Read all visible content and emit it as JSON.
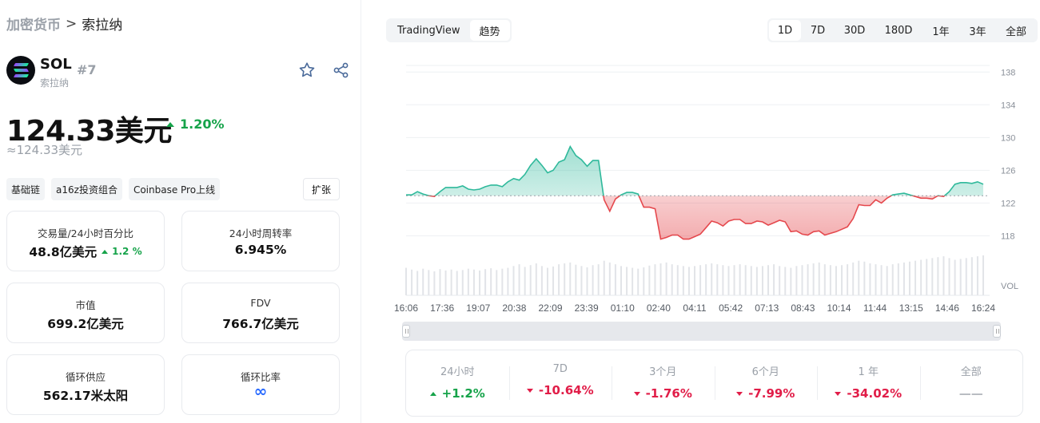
{
  "breadcrumb": {
    "root": "加密货币",
    "separator": ">",
    "current": "索拉纳"
  },
  "coin": {
    "symbol": "SOL",
    "rank": "#7",
    "name": "索拉纳"
  },
  "icons": {
    "star": "star-icon",
    "share": "share-icon",
    "logo": "solana-logo"
  },
  "price": {
    "value": "124.33美元",
    "change": "1.20%",
    "approx": "≈124.33美元"
  },
  "tags": [
    "基础链",
    "a16z投资组合",
    "Coinbase Pro上线"
  ],
  "expand_label": "扩张",
  "stats": {
    "volume": {
      "label": "交易量/24小时百分比",
      "value": "48.8亿美元",
      "change": "1.2 %"
    },
    "turnover": {
      "label": "24小时周转率",
      "value": "6.945%"
    },
    "market_cap": {
      "label": "市值",
      "value": "699.2亿美元"
    },
    "fdv": {
      "label": "FDV",
      "value": "766.7亿美元"
    },
    "supply": {
      "label": "循环供应",
      "value": "562.17米太阳"
    },
    "ratio": {
      "label": "循环比率",
      "value": "∞"
    }
  },
  "view_toggle": {
    "tradingview": "TradingView",
    "trend": "趋势"
  },
  "ranges": [
    "1D",
    "7D",
    "30D",
    "180D",
    "1年",
    "3年",
    "全部"
  ],
  "selected_range": "1D",
  "colors": {
    "up": "#16a34a",
    "down": "#e11d48",
    "line_up": "#2fb99b",
    "line_down": "#e5484d"
  },
  "chart_data": {
    "type": "area",
    "baseline": 122.9,
    "ylim": [
      116,
      139
    ],
    "y_ticks": [
      138,
      134,
      130,
      126,
      122,
      118
    ],
    "y_extra_label": "VOL",
    "x_ticks": [
      "16:06",
      "17:36",
      "19:07",
      "20:38",
      "22:09",
      "23:39",
      "01:10",
      "02:40",
      "04:11",
      "05:42",
      "07:13",
      "08:43",
      "10:14",
      "11:44",
      "13:15",
      "14:46",
      "16:24"
    ],
    "series": [
      {
        "values": [
          123.0,
          123.0,
          123.4,
          123.1,
          122.9,
          122.8,
          123.4,
          123.9,
          123.9,
          123.9,
          124.1,
          123.7,
          123.6,
          123.7,
          124.0,
          124.2,
          124.2,
          124.0,
          124.6,
          125.0,
          124.8,
          125.5,
          126.6,
          127.4,
          126.6,
          125.7,
          126.0,
          127.0,
          127.3,
          128.9,
          127.8,
          127.3,
          126.5,
          127.2,
          127.2,
          122.4,
          121.0,
          122.5,
          123.0,
          123.3,
          123.3,
          123.1,
          121.5,
          121.5,
          121.3,
          117.6,
          117.8,
          118.1,
          118.1,
          117.6,
          117.6,
          117.9,
          118.2,
          119.0,
          119.8,
          119.6,
          119.2,
          119.8,
          120.0,
          120.0,
          119.5,
          119.5,
          119.8,
          119.7,
          119.3,
          119.6,
          119.9,
          119.7,
          118.5,
          118.6,
          118.2,
          118.1,
          118.5,
          118.6,
          118.1,
          118.3,
          118.5,
          118.8,
          119.1,
          120.1,
          121.8,
          121.7,
          121.7,
          122.4,
          122.0,
          122.6,
          123.0,
          123.1,
          123.2,
          123.0,
          122.8,
          122.6,
          122.6,
          122.5,
          122.9,
          122.8,
          123.4,
          124.3,
          124.5,
          124.5,
          124.4,
          124.6,
          124.3
        ],
        "volume": [
          62,
          58,
          55,
          60,
          57,
          54,
          59,
          56,
          58,
          55,
          57,
          60,
          58,
          56,
          59,
          61,
          57,
          60,
          62,
          66,
          70,
          64,
          68,
          72,
          66,
          62,
          65,
          70,
          72,
          74,
          69,
          66,
          63,
          68,
          70,
          78,
          74,
          70,
          66,
          64,
          62,
          60,
          63,
          67,
          70,
          72,
          74,
          70,
          68,
          66,
          64,
          66,
          68,
          70,
          72,
          70,
          68,
          66,
          68,
          70,
          68,
          66,
          64,
          66,
          68,
          70,
          66,
          64,
          62,
          66,
          68,
          70,
          72,
          74,
          70,
          68,
          66,
          68,
          70,
          74,
          78,
          76,
          72,
          70,
          68,
          66,
          70,
          72,
          74,
          76,
          78,
          80,
          82,
          84,
          86,
          88,
          84,
          80,
          82,
          84,
          86,
          88,
          90
        ]
      }
    ]
  },
  "performance": [
    {
      "label": "24小时",
      "value": "+1.2%",
      "dir": "up"
    },
    {
      "label": "7D",
      "value": "-10.64%",
      "dir": "down"
    },
    {
      "label": "3个月",
      "value": "-1.76%",
      "dir": "down"
    },
    {
      "label": "6个月",
      "value": "-7.99%",
      "dir": "down"
    },
    {
      "label": "1 年",
      "value": "-34.02%",
      "dir": "down"
    },
    {
      "label": "全部",
      "value": "——",
      "dir": "none"
    }
  ]
}
